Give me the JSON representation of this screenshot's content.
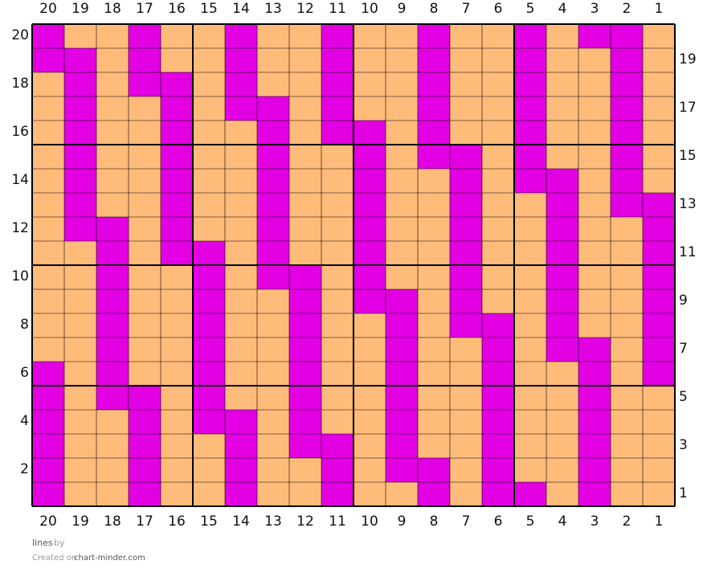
{
  "chart_data": {
    "type": "grid",
    "column_labels": [
      20,
      19,
      18,
      17,
      16,
      15,
      14,
      13,
      12,
      11,
      10,
      9,
      8,
      7,
      6,
      5,
      4,
      3,
      2,
      1
    ],
    "colors": [
      "#ffbb7a",
      "#e300e3"
    ],
    "rows": [
      {
        "label": 20,
        "cells": [
          1,
          0,
          0,
          1,
          0,
          0,
          1,
          0,
          0,
          1,
          0,
          0,
          1,
          0,
          0,
          1,
          0,
          1,
          1,
          0
        ]
      },
      {
        "label": 19,
        "cells": [
          1,
          1,
          0,
          1,
          0,
          0,
          1,
          0,
          0,
          1,
          0,
          0,
          1,
          0,
          0,
          1,
          0,
          0,
          1,
          0
        ]
      },
      {
        "label": 18,
        "cells": [
          0,
          1,
          0,
          1,
          1,
          0,
          1,
          0,
          0,
          1,
          0,
          0,
          1,
          0,
          0,
          1,
          0,
          0,
          1,
          0
        ]
      },
      {
        "label": 17,
        "cells": [
          0,
          1,
          0,
          0,
          1,
          0,
          1,
          1,
          0,
          1,
          0,
          0,
          1,
          0,
          0,
          1,
          0,
          0,
          1,
          0
        ]
      },
      {
        "label": 16,
        "cells": [
          0,
          1,
          0,
          0,
          1,
          0,
          0,
          1,
          0,
          1,
          1,
          0,
          1,
          0,
          0,
          1,
          0,
          0,
          1,
          0
        ]
      },
      {
        "label": 15,
        "cells": [
          0,
          1,
          0,
          0,
          1,
          0,
          0,
          1,
          0,
          0,
          1,
          0,
          1,
          1,
          0,
          1,
          0,
          0,
          1,
          0
        ]
      },
      {
        "label": 14,
        "cells": [
          0,
          1,
          0,
          0,
          1,
          0,
          0,
          1,
          0,
          0,
          1,
          0,
          0,
          1,
          0,
          1,
          1,
          0,
          1,
          0
        ]
      },
      {
        "label": 13,
        "cells": [
          0,
          1,
          0,
          0,
          1,
          0,
          0,
          1,
          0,
          0,
          1,
          0,
          0,
          1,
          0,
          0,
          1,
          0,
          1,
          1
        ]
      },
      {
        "label": 12,
        "cells": [
          0,
          1,
          1,
          0,
          1,
          0,
          0,
          1,
          0,
          0,
          1,
          0,
          0,
          1,
          0,
          0,
          1,
          0,
          0,
          1
        ]
      },
      {
        "label": 11,
        "cells": [
          0,
          0,
          1,
          0,
          1,
          1,
          0,
          1,
          0,
          0,
          1,
          0,
          0,
          1,
          0,
          0,
          1,
          0,
          0,
          1
        ]
      },
      {
        "label": 10,
        "cells": [
          0,
          0,
          1,
          0,
          0,
          1,
          0,
          1,
          1,
          0,
          1,
          0,
          0,
          1,
          0,
          0,
          1,
          0,
          0,
          1
        ]
      },
      {
        "label": 9,
        "cells": [
          0,
          0,
          1,
          0,
          0,
          1,
          0,
          0,
          1,
          0,
          1,
          1,
          0,
          1,
          0,
          0,
          1,
          0,
          0,
          1
        ]
      },
      {
        "label": 8,
        "cells": [
          0,
          0,
          1,
          0,
          0,
          1,
          0,
          0,
          1,
          0,
          0,
          1,
          0,
          1,
          1,
          0,
          1,
          0,
          0,
          1
        ]
      },
      {
        "label": 7,
        "cells": [
          0,
          0,
          1,
          0,
          0,
          1,
          0,
          0,
          1,
          0,
          0,
          1,
          0,
          0,
          1,
          0,
          1,
          1,
          0,
          1
        ]
      },
      {
        "label": 6,
        "cells": [
          1,
          0,
          1,
          0,
          0,
          1,
          0,
          0,
          1,
          0,
          0,
          1,
          0,
          0,
          1,
          0,
          0,
          1,
          0,
          1
        ]
      },
      {
        "label": 5,
        "cells": [
          1,
          0,
          1,
          1,
          0,
          1,
          0,
          0,
          1,
          0,
          0,
          1,
          0,
          0,
          1,
          0,
          0,
          1,
          0,
          0
        ]
      },
      {
        "label": 4,
        "cells": [
          1,
          0,
          0,
          1,
          0,
          1,
          1,
          0,
          1,
          0,
          0,
          1,
          0,
          0,
          1,
          0,
          0,
          1,
          0,
          0
        ]
      },
      {
        "label": 3,
        "cells": [
          1,
          0,
          0,
          1,
          0,
          0,
          1,
          0,
          1,
          1,
          0,
          1,
          0,
          0,
          1,
          0,
          0,
          1,
          0,
          0
        ]
      },
      {
        "label": 2,
        "cells": [
          1,
          0,
          0,
          1,
          0,
          0,
          1,
          0,
          0,
          1,
          0,
          1,
          1,
          0,
          1,
          0,
          0,
          1,
          0,
          0
        ]
      },
      {
        "label": 1,
        "cells": [
          1,
          0,
          0,
          1,
          0,
          0,
          1,
          0,
          0,
          1,
          0,
          0,
          1,
          0,
          1,
          1,
          0,
          1,
          0,
          0
        ]
      }
    ],
    "footer": {
      "title": "lines",
      "by": "by",
      "created": "Created on",
      "site": "chart-minder.com"
    }
  }
}
